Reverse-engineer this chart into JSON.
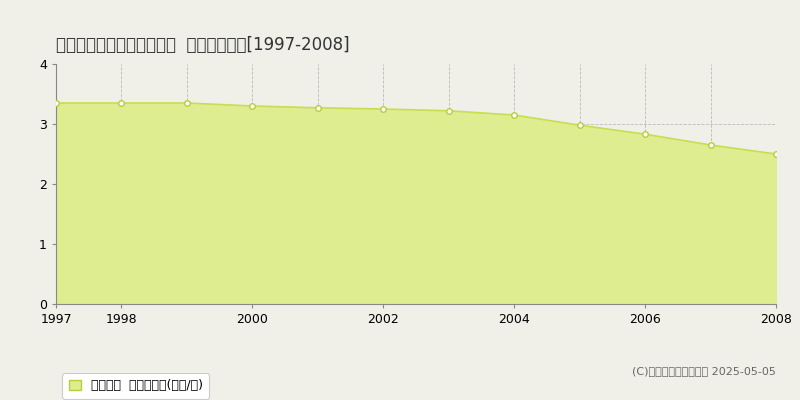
{
  "title": "上北郡野辺地町下御手洗瀬  基準地価推移[1997-2008]",
  "years": [
    1997,
    1998,
    1999,
    2000,
    2001,
    2002,
    2003,
    2004,
    2005,
    2006,
    2007,
    2008
  ],
  "values": [
    3.35,
    3.35,
    3.35,
    3.3,
    3.27,
    3.25,
    3.22,
    3.15,
    2.98,
    2.83,
    2.65,
    2.5
  ],
  "line_color": "#c8de50",
  "fill_color": "#dded90",
  "marker_color": "#ffffff",
  "marker_edge_color": "#b8cc40",
  "background_color": "#f0f0e8",
  "plot_bg_color": "#f0f0e8",
  "grid_color_v": "#bbbbbb",
  "grid_color_h": "#bbbbbb",
  "ylim": [
    0,
    4
  ],
  "yticks": [
    0,
    1,
    2,
    3,
    4
  ],
  "all_years": [
    1997,
    1998,
    1999,
    2000,
    2001,
    2002,
    2003,
    2004,
    2005,
    2006,
    2007,
    2008
  ],
  "xticks_show": [
    1997,
    1998,
    2000,
    2002,
    2004,
    2006,
    2008
  ],
  "legend_label": "基準地価  平均坪単価(万円/坪)",
  "copyright_text": "(C)土地価格ドットコム 2025-05-05",
  "title_fontsize": 12,
  "axis_fontsize": 9,
  "legend_fontsize": 9,
  "copyright_fontsize": 8
}
